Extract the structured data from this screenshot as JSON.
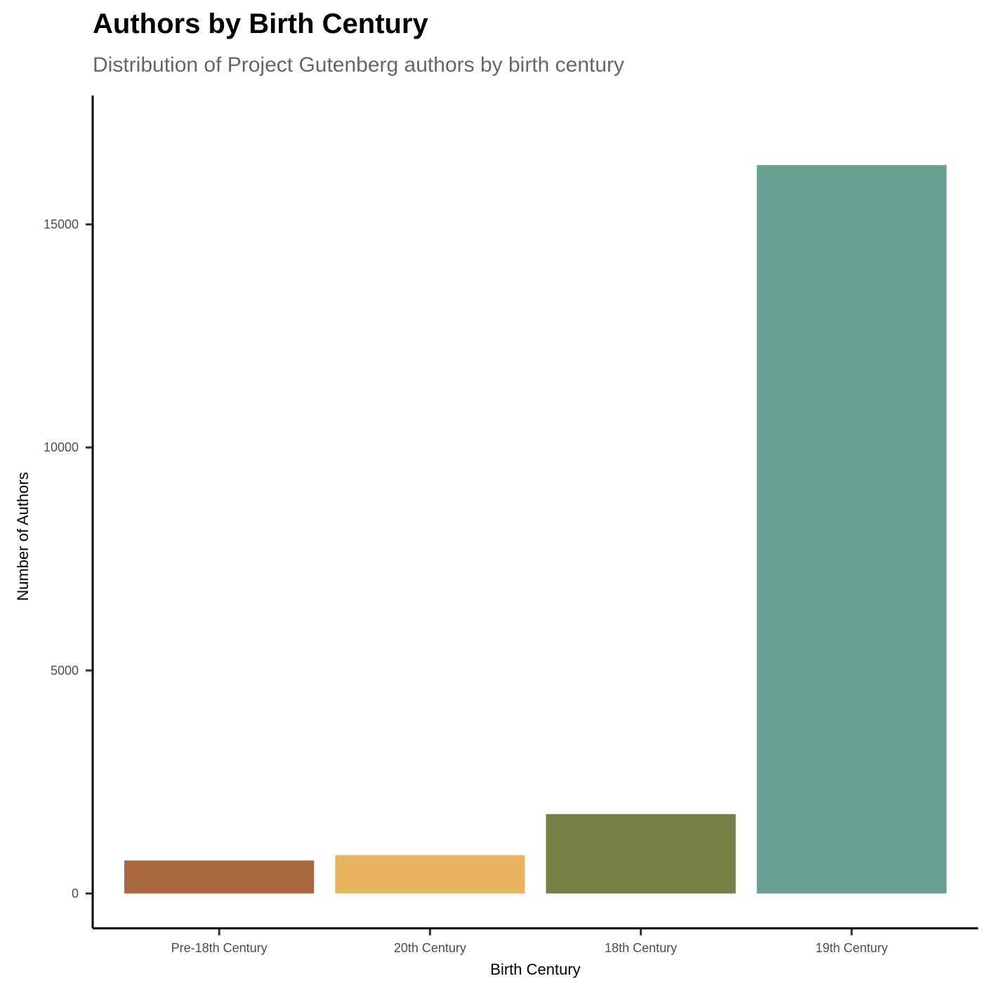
{
  "chart_data": {
    "type": "bar",
    "title": "Authors by Birth Century",
    "subtitle": "Distribution of Project Gutenberg authors by birth century",
    "xlabel": "Birth Century",
    "ylabel": "Number of Authors",
    "categories": [
      "Pre-18th Century",
      "20th Century",
      "18th Century",
      "19th Century"
    ],
    "values": [
      740,
      860,
      1780,
      16330
    ],
    "colors": [
      "#A9673F",
      "#E9B45E",
      "#778046",
      "#68A193"
    ],
    "ylim": [
      -780,
      17890
    ],
    "yticks": [
      0,
      5000,
      10000,
      15000
    ],
    "ytick_labels": [
      "0",
      "5000",
      "10000",
      "15000"
    ],
    "grid": false,
    "legend": "none"
  }
}
